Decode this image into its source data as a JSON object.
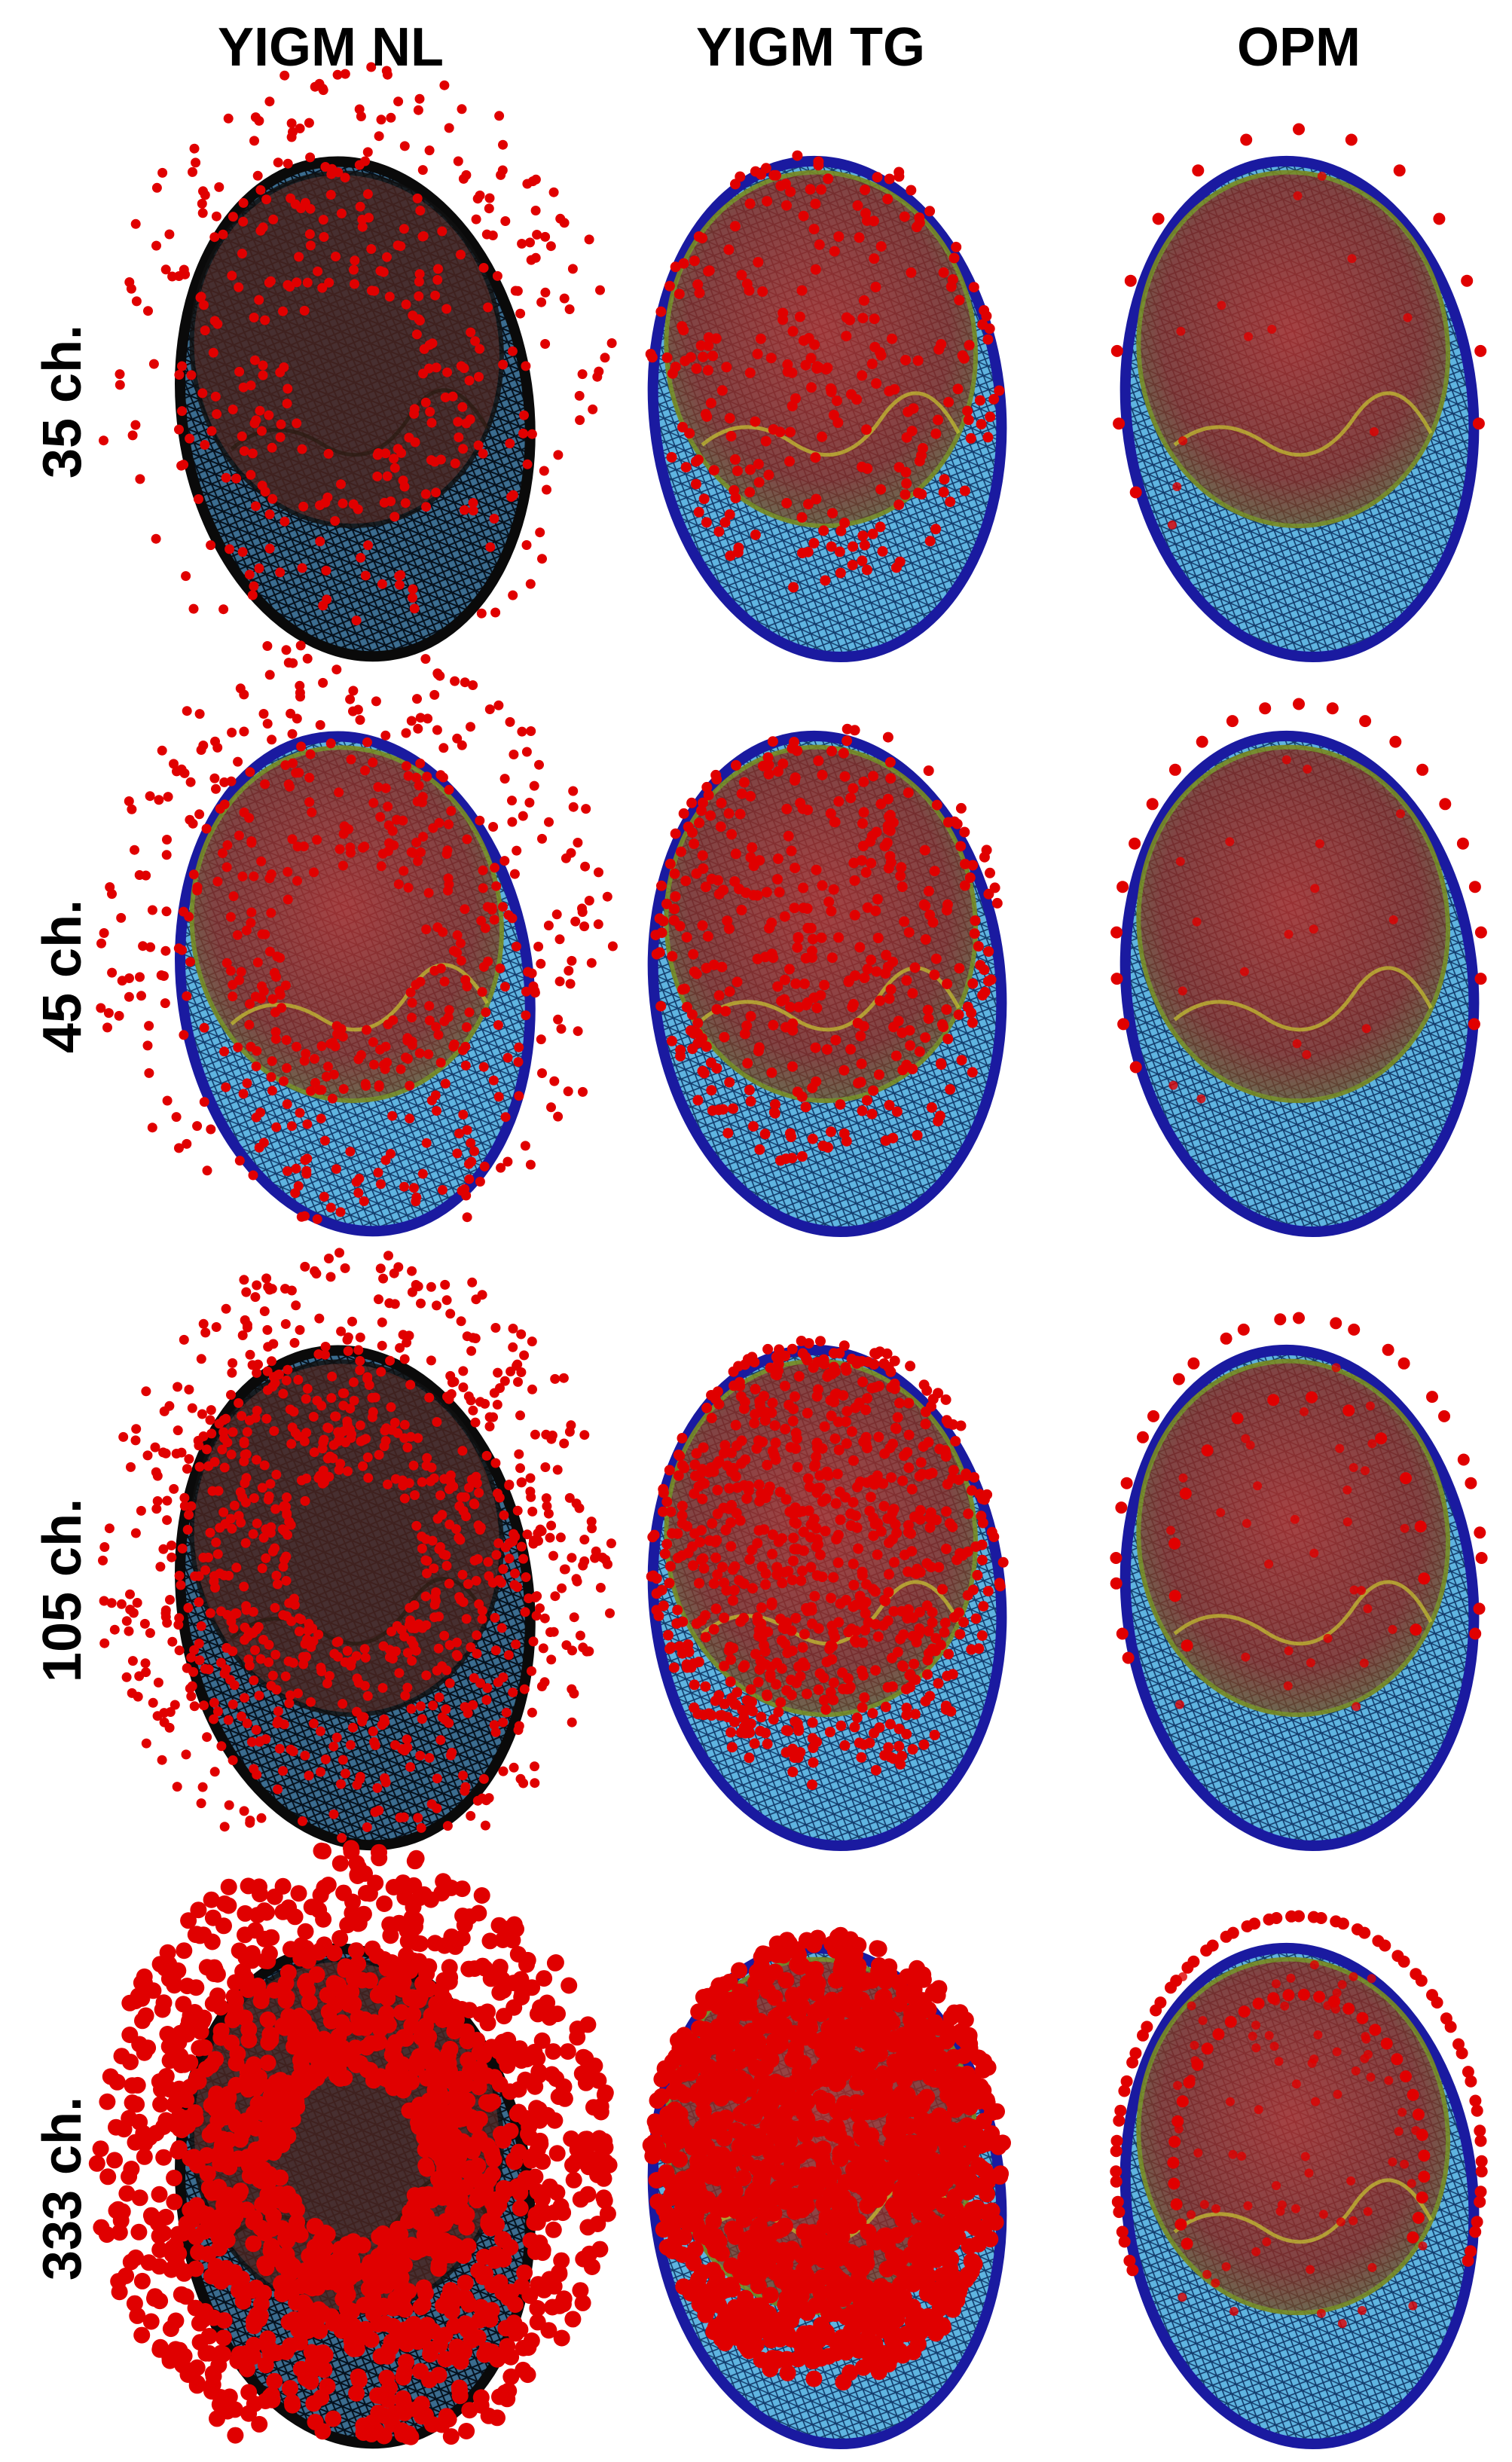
{
  "header": {
    "columns": [
      "YIGM NL",
      "YIGM TG",
      "OPM"
    ]
  },
  "rows": [
    {
      "label": "35 ch."
    },
    {
      "label": "45 ch."
    },
    {
      "label": "105 ch."
    },
    {
      "label": "333 ch."
    }
  ]
}
